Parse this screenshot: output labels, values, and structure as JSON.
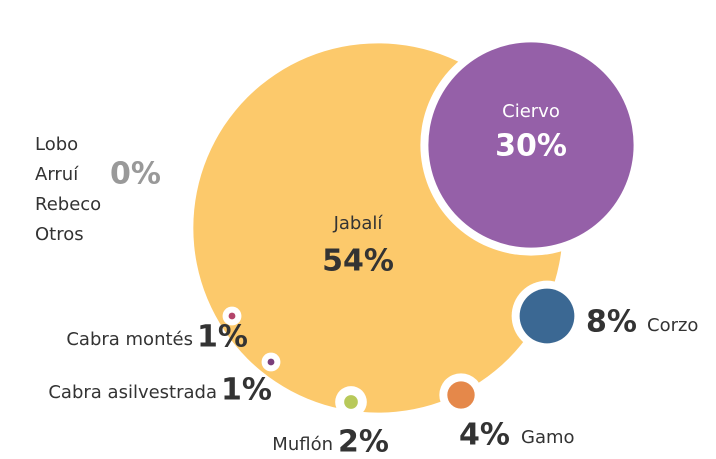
{
  "chart_data": {
    "type": "bubble",
    "items": [
      {
        "name": "Jabalí",
        "value": 54,
        "value_label": "54%",
        "color": "#fcc96b"
      },
      {
        "name": "Ciervo",
        "value": 30,
        "value_label": "30%",
        "color": "#9560a8"
      },
      {
        "name": "Corzo",
        "value": 8,
        "value_label": "8%",
        "color": "#3b6893"
      },
      {
        "name": "Gamo",
        "value": 4,
        "value_label": "4%",
        "color": "#e5884a"
      },
      {
        "name": "Muflón",
        "value": 2,
        "value_label": "2%",
        "color": "#b8c95a"
      },
      {
        "name": "Cabra asilvestrada",
        "value": 1,
        "value_label": "1%",
        "color": "#7a3e7a"
      },
      {
        "name": "Cabra montés",
        "value": 1,
        "value_label": "1%",
        "color": "#b3446a"
      },
      {
        "names": [
          "Lobo",
          "Arruí",
          "Rebeco",
          "Otros"
        ],
        "value": 0,
        "value_label": "0%",
        "color": "#999999"
      }
    ]
  }
}
